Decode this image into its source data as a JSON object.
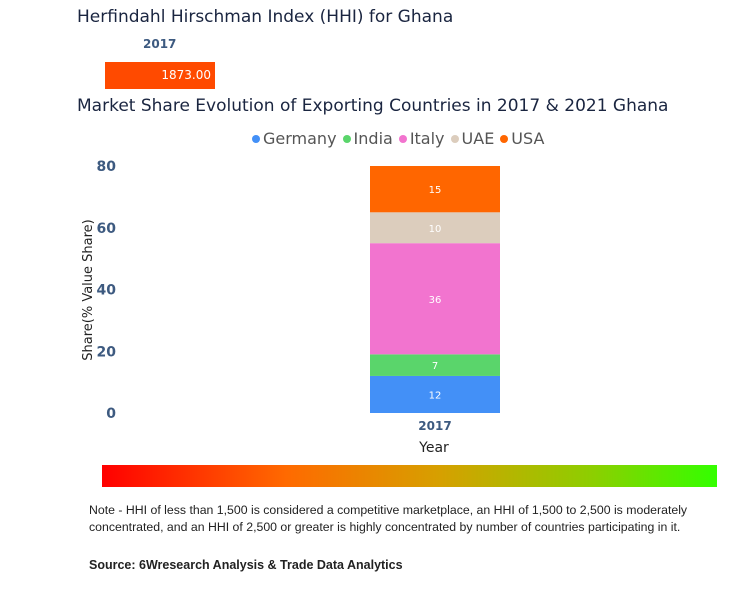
{
  "hhi": {
    "title": "Herfindahl Hirschman Index (HHI) for Ghana",
    "year": "2017",
    "value": "1873.00",
    "color": "#ff4a00"
  },
  "chart_data": {
    "type": "bar",
    "stacked": true,
    "title": "Market Share Evolution of Exporting Countries in 2017 & 2021 Ghana",
    "categories": [
      "2017"
    ],
    "series": [
      {
        "name": "Germany",
        "values": [
          12
        ],
        "color": "#4390f7"
      },
      {
        "name": "India",
        "values": [
          7
        ],
        "color": "#5ad56b"
      },
      {
        "name": "Italy",
        "values": [
          36
        ],
        "color": "#f274cf"
      },
      {
        "name": "UAE",
        "values": [
          10
        ],
        "color": "#dccdbd"
      },
      {
        "name": "USA",
        "values": [
          15
        ],
        "color": "#ff6600"
      }
    ],
    "xlabel": "Year",
    "ylabel": "Share(% Value Share)",
    "ylim": [
      0,
      80
    ],
    "yticks": [
      "0",
      "20",
      "40",
      "60",
      "80"
    ],
    "legend": "top-center",
    "grid": false
  },
  "note": "Note - HHI of less than 1,500 is considered a competitive marketplace, an HHI of 1,500 to 2,500 is moderately concentrated, and an HHI of 2,500 or greater is highly concentrated by number of countries participating in it.",
  "source": "Source: 6Wresearch Analysis & Trade Data Analytics"
}
